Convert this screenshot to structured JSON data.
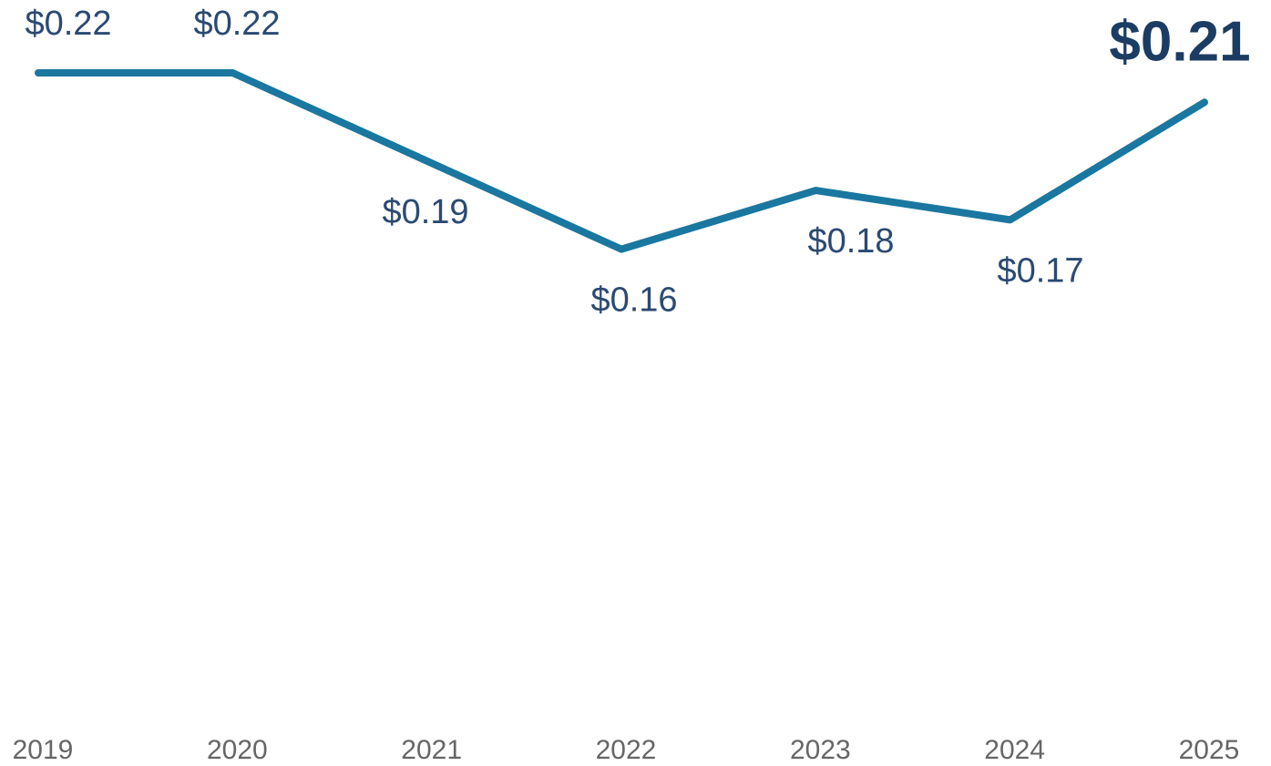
{
  "chart_data": {
    "type": "line",
    "categories": [
      "2019",
      "2020",
      "2021",
      "2022",
      "2023",
      "2024",
      "2025"
    ],
    "series": [
      {
        "color": "#1a77a0",
        "values": [
          0.22,
          0.22,
          0.19,
          0.16,
          0.18,
          0.17,
          0.21
        ],
        "value_labels": [
          "$0.22",
          "$0.22",
          "$0.19",
          "$0.16",
          "$0.18",
          "$0.17",
          "$0.21"
        ]
      }
    ],
    "ylim": [
      0,
      0.22
    ]
  }
}
